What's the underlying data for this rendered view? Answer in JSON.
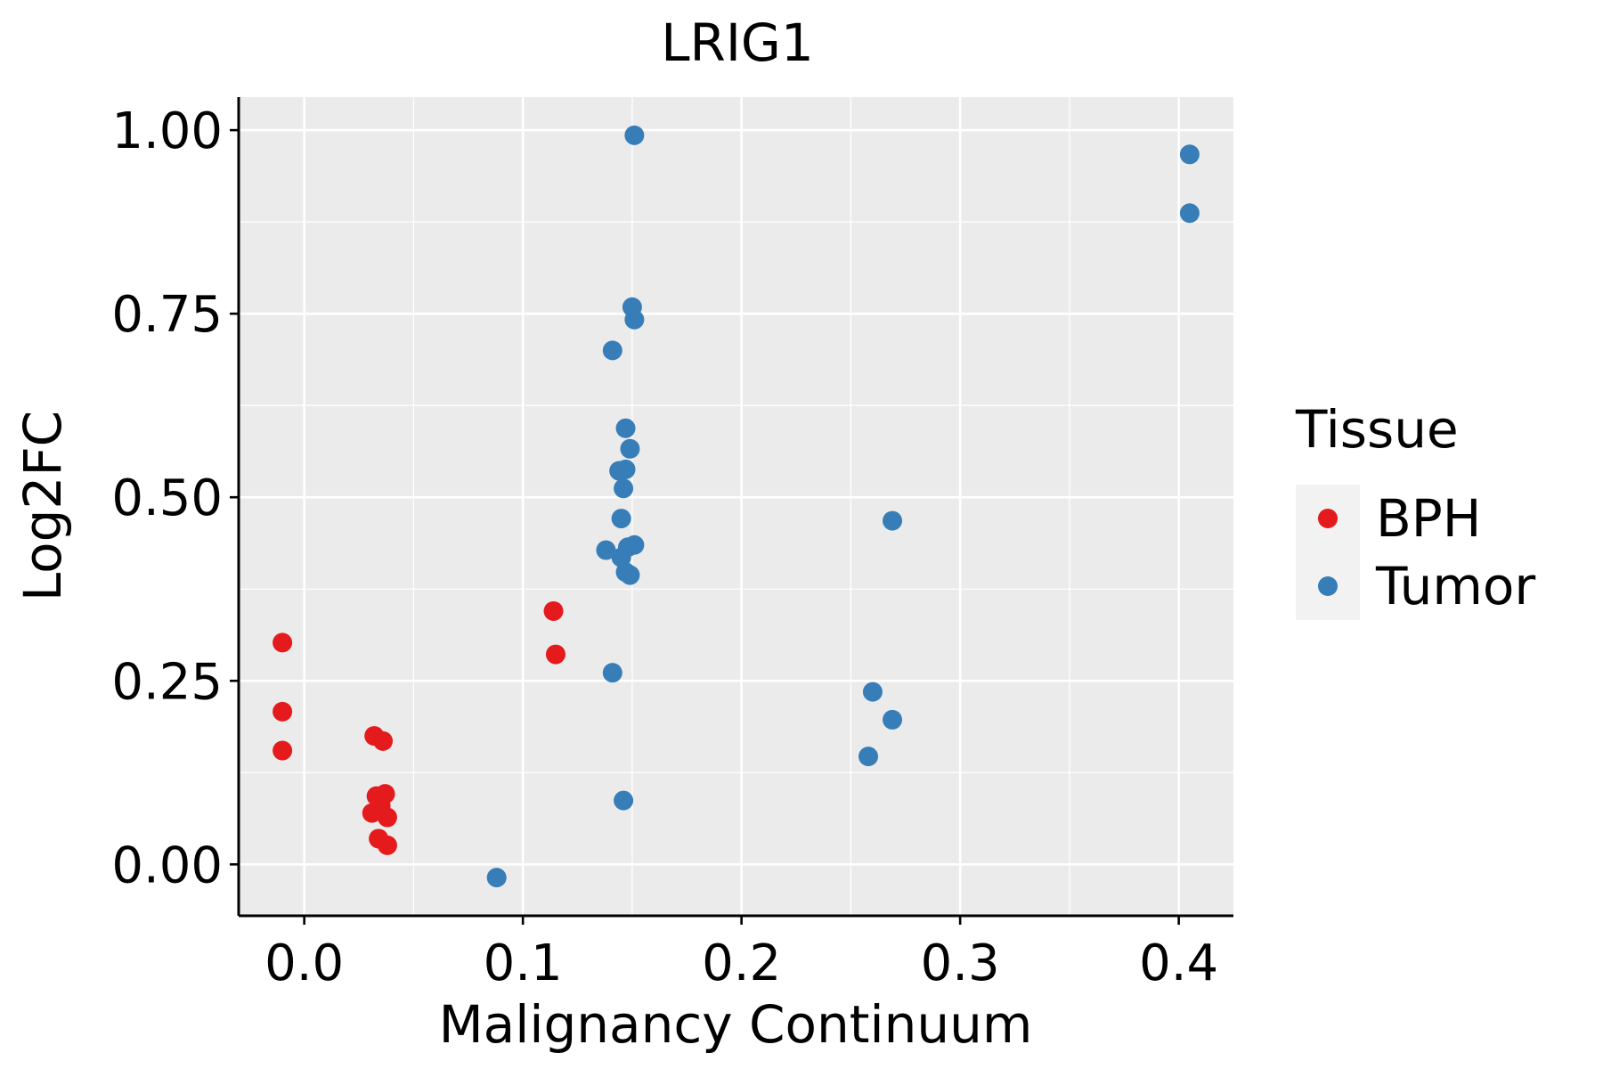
{
  "chart_data": {
    "type": "scatter",
    "title": "LRIG1",
    "xlabel": "Malignancy Continuum",
    "ylabel": "Log2FC",
    "xlim": [
      -0.03,
      0.425
    ],
    "ylim": [
      -0.07,
      1.045
    ],
    "x_ticks": [
      0.0,
      0.1,
      0.2,
      0.3,
      0.4
    ],
    "x_tick_labels": [
      "0.0",
      "0.1",
      "0.2",
      "0.3",
      "0.4"
    ],
    "y_ticks": [
      0.0,
      0.25,
      0.5,
      0.75,
      1.0
    ],
    "y_tick_labels": [
      "0.00",
      "0.25",
      "0.50",
      "0.75",
      "1.00"
    ],
    "grid": true,
    "legend": {
      "title": "Tissue",
      "placement": "right",
      "entries": [
        "BPH",
        "Tumor"
      ]
    },
    "series": [
      {
        "name": "BPH",
        "color": "#e41a1c",
        "points": [
          {
            "x": -0.01,
            "y": 0.302
          },
          {
            "x": -0.01,
            "y": 0.208
          },
          {
            "x": -0.01,
            "y": 0.155
          },
          {
            "x": 0.032,
            "y": 0.175
          },
          {
            "x": 0.036,
            "y": 0.168
          },
          {
            "x": 0.033,
            "y": 0.093
          },
          {
            "x": 0.037,
            "y": 0.096
          },
          {
            "x": 0.035,
            "y": 0.08
          },
          {
            "x": 0.031,
            "y": 0.07
          },
          {
            "x": 0.038,
            "y": 0.064
          },
          {
            "x": 0.034,
            "y": 0.035
          },
          {
            "x": 0.038,
            "y": 0.026
          },
          {
            "x": 0.114,
            "y": 0.345
          },
          {
            "x": 0.115,
            "y": 0.286
          }
        ]
      },
      {
        "name": "Tumor",
        "color": "#377eb8",
        "points": [
          {
            "x": 0.151,
            "y": 0.993
          },
          {
            "x": 0.405,
            "y": 0.967
          },
          {
            "x": 0.405,
            "y": 0.887
          },
          {
            "x": 0.15,
            "y": 0.759
          },
          {
            "x": 0.151,
            "y": 0.742
          },
          {
            "x": 0.141,
            "y": 0.7
          },
          {
            "x": 0.147,
            "y": 0.594
          },
          {
            "x": 0.149,
            "y": 0.566
          },
          {
            "x": 0.147,
            "y": 0.538
          },
          {
            "x": 0.144,
            "y": 0.536
          },
          {
            "x": 0.146,
            "y": 0.512
          },
          {
            "x": 0.145,
            "y": 0.471
          },
          {
            "x": 0.269,
            "y": 0.468
          },
          {
            "x": 0.151,
            "y": 0.435
          },
          {
            "x": 0.148,
            "y": 0.432
          },
          {
            "x": 0.138,
            "y": 0.428
          },
          {
            "x": 0.145,
            "y": 0.418
          },
          {
            "x": 0.147,
            "y": 0.398
          },
          {
            "x": 0.149,
            "y": 0.394
          },
          {
            "x": 0.141,
            "y": 0.261
          },
          {
            "x": 0.26,
            "y": 0.235
          },
          {
            "x": 0.269,
            "y": 0.197
          },
          {
            "x": 0.258,
            "y": 0.147
          },
          {
            "x": 0.146,
            "y": 0.087
          },
          {
            "x": 0.088,
            "y": -0.018
          }
        ]
      }
    ]
  },
  "colors": {
    "panel_background": "#ebebeb",
    "legend_key_background": "#f2f2f2",
    "gridline": "#ffffff",
    "axis_line": "#000000"
  }
}
